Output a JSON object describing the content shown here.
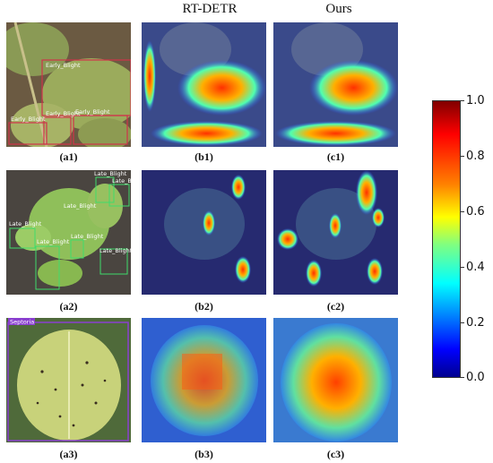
{
  "columns": [
    "RT-DETR",
    "Ours"
  ],
  "captions": {
    "a1": "(a1)",
    "b1": "(b1)",
    "c1": "(c1)",
    "a2": "(a2)",
    "b2": "(b2)",
    "c2": "(c2)",
    "a3": "(a3)",
    "b3": "(b3)",
    "c3": "(c3)"
  },
  "detections": {
    "row1": [
      "Early_Blight",
      "Early_Blight",
      "Early_Blight",
      "Early_Blight"
    ],
    "row2": [
      "Late_Blight",
      "Late_Blight",
      "Late_Blight",
      "Late_Blight",
      "Late_Blight",
      "Late_Blight",
      "Late_B"
    ],
    "row3": [
      "Septoria"
    ]
  },
  "colorbar": {
    "ticks": [
      "1.0",
      "0.8",
      "0.6",
      "0.4",
      "0.2",
      "0.0"
    ],
    "colors": [
      "#800000",
      "#ff0000",
      "#ff8000",
      "#ffff00",
      "#80ff80",
      "#00ffff",
      "#0080ff",
      "#0000ff",
      "#00008f"
    ]
  }
}
